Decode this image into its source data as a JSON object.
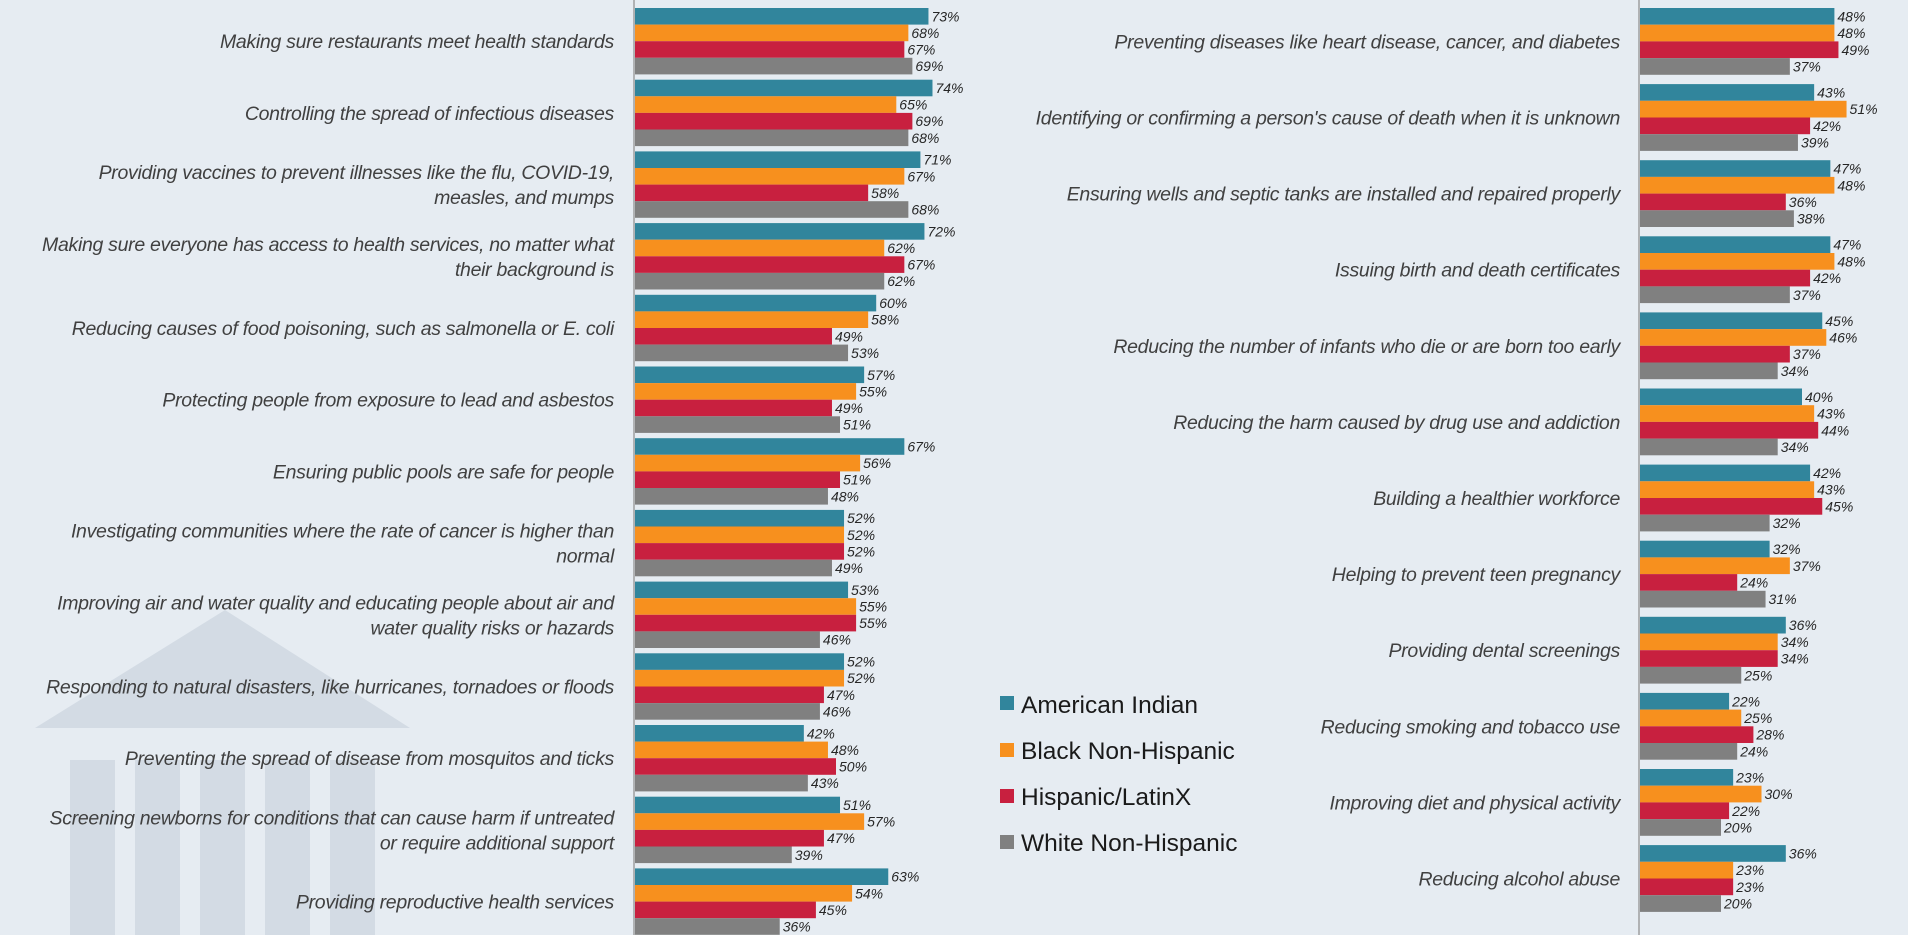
{
  "chart_data": [
    {
      "type": "bar",
      "orientation": "horizontal",
      "categories": [
        [
          "Making sure restaurants meet health standards"
        ],
        [
          "Controlling the spread of infectious diseases"
        ],
        [
          "Providing vaccines to prevent illnesses like the flu, COVID-19,",
          "measles, and mumps"
        ],
        [
          "Making sure everyone has access to health services, no matter what",
          "their background is"
        ],
        [
          "Reducing causes of food poisoning, such as salmonella or E. coli"
        ],
        [
          "Protecting people from exposure to lead and asbestos"
        ],
        [
          "Ensuring public pools are safe for people"
        ],
        [
          "Investigating communities where the rate of cancer is higher than",
          "normal"
        ],
        [
          "Improving air and water quality and educating people about air and",
          "water quality risks or hazards"
        ],
        [
          "Responding to natural disasters, like hurricanes, tornadoes or floods"
        ],
        [
          "Preventing the spread of disease from mosquitos and ticks"
        ],
        [
          "Screening newborns for conditions that can cause harm if untreated",
          "or require additional support"
        ],
        [
          "Providing reproductive health services"
        ]
      ],
      "series": [
        {
          "name": "American Indian",
          "values": [
            73,
            74,
            71,
            72,
            60,
            57,
            67,
            52,
            53,
            52,
            42,
            51,
            63
          ]
        },
        {
          "name": "Black Non-Hispanic",
          "values": [
            68,
            65,
            67,
            62,
            58,
            55,
            56,
            52,
            55,
            52,
            48,
            57,
            54
          ]
        },
        {
          "name": "Hispanic/LatinX",
          "values": [
            67,
            69,
            58,
            67,
            49,
            49,
            51,
            52,
            55,
            47,
            50,
            47,
            45
          ]
        },
        {
          "name": "White Non-Hispanic",
          "values": [
            69,
            68,
            68,
            62,
            53,
            51,
            48,
            49,
            46,
            46,
            43,
            39,
            36
          ]
        }
      ],
      "value_suffix": "%"
    },
    {
      "type": "bar",
      "orientation": "horizontal",
      "categories": [
        [
          "Preventing diseases like heart disease, cancer, and diabetes"
        ],
        [
          "Identifying or confirming a person's cause of death when it is unknown"
        ],
        [
          "Ensuring wells and septic tanks are installed and repaired properly"
        ],
        [
          "Issuing birth and death certificates"
        ],
        [
          "Reducing the number of infants who die or are born too early"
        ],
        [
          "Reducing the harm caused by drug use and addiction"
        ],
        [
          "Building a healthier workforce"
        ],
        [
          "Helping to prevent teen pregnancy"
        ],
        [
          "Providing dental screenings"
        ],
        [
          "Reducing smoking and tobacco use"
        ],
        [
          "Improving diet and physical activity"
        ],
        [
          "Reducing alcohol abuse"
        ]
      ],
      "series": [
        {
          "name": "American Indian",
          "values": [
            48,
            43,
            47,
            47,
            45,
            40,
            42,
            32,
            36,
            22,
            23,
            36
          ]
        },
        {
          "name": "Black Non-Hispanic",
          "values": [
            48,
            51,
            48,
            48,
            46,
            43,
            43,
            37,
            34,
            25,
            30,
            23
          ]
        },
        {
          "name": "Hispanic/LatinX",
          "values": [
            49,
            42,
            36,
            42,
            37,
            44,
            45,
            24,
            34,
            28,
            22,
            23
          ]
        },
        {
          "name": "White Non-Hispanic",
          "values": [
            37,
            39,
            38,
            37,
            34,
            34,
            32,
            31,
            25,
            24,
            20,
            20
          ]
        }
      ],
      "value_suffix": "%"
    }
  ],
  "legend": {
    "items": [
      {
        "name": "American Indian",
        "color": "#31859c"
      },
      {
        "name": "Black Non-Hispanic",
        "color": "#f7901e"
      },
      {
        "name": "Hispanic/LatinX",
        "color": "#c8203f"
      },
      {
        "name": "White Non-Hispanic",
        "color": "#808080"
      }
    ]
  },
  "series_colors": [
    "#31859c",
    "#f7901e",
    "#c8203f",
    "#808080"
  ],
  "background_watermark": "building-icon"
}
